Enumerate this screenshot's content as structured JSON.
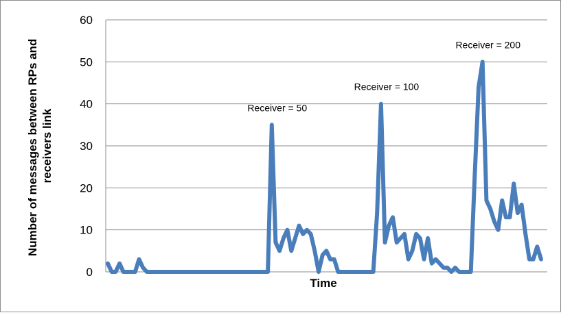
{
  "chart_data": {
    "type": "line",
    "xlabel": "Time",
    "ylabel_lines": [
      "Number of messages between RPs and",
      "receivers link"
    ],
    "ylim": [
      0,
      60
    ],
    "yticks": [
      0,
      10,
      20,
      30,
      40,
      50,
      60
    ],
    "grid": true,
    "legend": "none",
    "series": [
      {
        "color": "#4a7ebb",
        "values": [
          2,
          0,
          0,
          2,
          0,
          0,
          0,
          0,
          3,
          1,
          0,
          0,
          0,
          0,
          0,
          0,
          0,
          0,
          0,
          0,
          0,
          0,
          0,
          0,
          0,
          0,
          0,
          0,
          0,
          0,
          0,
          0,
          0,
          0,
          0,
          0,
          0,
          0,
          0,
          0,
          0,
          0,
          35,
          7,
          5,
          8,
          10,
          5,
          8,
          11,
          9,
          10,
          9,
          5,
          0,
          4,
          5,
          3,
          3,
          0,
          0,
          0,
          0,
          0,
          0,
          0,
          0,
          0,
          0,
          14,
          40,
          7,
          11,
          13,
          7,
          8,
          9,
          3,
          5,
          9,
          8,
          3,
          8,
          2,
          3,
          2,
          1,
          1,
          0,
          1,
          0,
          0,
          0,
          0,
          23,
          44,
          50,
          17,
          15,
          12,
          10,
          17,
          13,
          13,
          21,
          14,
          16,
          9,
          3,
          3,
          6,
          3
        ]
      }
    ],
    "annotations": [
      {
        "text": "Receiver = 50",
        "x_index": 42
      },
      {
        "text": "Receiver = 100",
        "x_index": 70
      },
      {
        "text": "Receiver = 200",
        "x_index": 96
      }
    ]
  }
}
